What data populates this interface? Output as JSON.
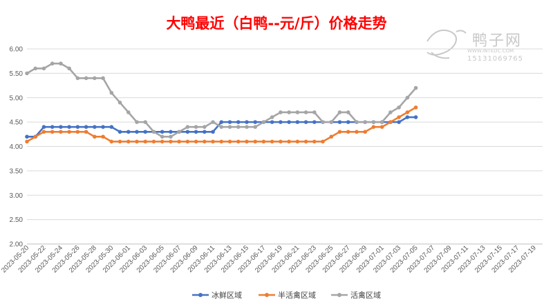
{
  "chart_data": {
    "type": "line",
    "title": "大鸭最近（白鸭--元/斤）价格走势",
    "xlabel": "",
    "ylabel": "",
    "ylim": [
      2.0,
      6.0
    ],
    "y_ticks": [
      "2.00",
      "2.50",
      "3.00",
      "3.50",
      "4.00",
      "4.50",
      "5.00",
      "5.50",
      "6.00"
    ],
    "grid": true,
    "legend_position": "bottom",
    "x_tick_labels": [
      "2023-05-20",
      "2023-05-22",
      "2023-05-24",
      "2023-05-26",
      "2023-05-28",
      "2023-05-30",
      "2023-06-01",
      "2023-06-03",
      "2023-06-05",
      "2023-06-07",
      "2023-06-09",
      "2023-06-11",
      "2023-06-13",
      "2023-06-15",
      "2023-06-17",
      "2023-06-19",
      "2023-06-21",
      "2023-06-23",
      "2023-06-25",
      "2023-06-27",
      "2023-06-29",
      "2023-07-01",
      "2023-07-03",
      "2023-07-05",
      "2023-07-07",
      "2023-07-09",
      "2023-07-11",
      "2023-07-13",
      "2023-07-15",
      "2023-07-17",
      "2023-07-19"
    ],
    "x_first_date": "2023-05-20",
    "x_last_date": "2023-07-20",
    "series": [
      {
        "name": "冰鲜区域",
        "color": "#4472C4",
        "points": [
          [
            "2023-05-20",
            4.2
          ],
          [
            "2023-05-21",
            4.2
          ],
          [
            "2023-05-22",
            4.4
          ],
          [
            "2023-05-23",
            4.4
          ],
          [
            "2023-05-24",
            4.4
          ],
          [
            "2023-05-25",
            4.4
          ],
          [
            "2023-05-26",
            4.4
          ],
          [
            "2023-05-27",
            4.4
          ],
          [
            "2023-05-28",
            4.4
          ],
          [
            "2023-05-29",
            4.4
          ],
          [
            "2023-05-30",
            4.4
          ],
          [
            "2023-05-31",
            4.3
          ],
          [
            "2023-06-01",
            4.3
          ],
          [
            "2023-06-02",
            4.3
          ],
          [
            "2023-06-03",
            4.3
          ],
          [
            "2023-06-04",
            4.3
          ],
          [
            "2023-06-05",
            4.3
          ],
          [
            "2023-06-06",
            4.3
          ],
          [
            "2023-06-07",
            4.3
          ],
          [
            "2023-06-08",
            4.3
          ],
          [
            "2023-06-09",
            4.3
          ],
          [
            "2023-06-10",
            4.3
          ],
          [
            "2023-06-11",
            4.3
          ],
          [
            "2023-06-12",
            4.5
          ],
          [
            "2023-06-13",
            4.5
          ],
          [
            "2023-06-14",
            4.5
          ],
          [
            "2023-06-15",
            4.5
          ],
          [
            "2023-06-16",
            4.5
          ],
          [
            "2023-06-17",
            4.5
          ],
          [
            "2023-06-18",
            4.5
          ],
          [
            "2023-06-19",
            4.5
          ],
          [
            "2023-06-20",
            4.5
          ],
          [
            "2023-06-21",
            4.5
          ],
          [
            "2023-06-22",
            4.5
          ],
          [
            "2023-06-23",
            4.5
          ],
          [
            "2023-06-24",
            4.5
          ],
          [
            "2023-06-25",
            4.5
          ],
          [
            "2023-06-26",
            4.5
          ],
          [
            "2023-06-27",
            4.5
          ],
          [
            "2023-06-28",
            4.5
          ],
          [
            "2023-06-29",
            4.5
          ],
          [
            "2023-06-30",
            4.5
          ],
          [
            "2023-07-01",
            4.5
          ],
          [
            "2023-07-02",
            4.5
          ],
          [
            "2023-07-03",
            4.5
          ],
          [
            "2023-07-04",
            4.6
          ],
          [
            "2023-07-05",
            4.6
          ]
        ]
      },
      {
        "name": "半活禽区域",
        "color": "#ED7D31",
        "points": [
          [
            "2023-05-20",
            4.1
          ],
          [
            "2023-05-21",
            4.2
          ],
          [
            "2023-05-22",
            4.3
          ],
          [
            "2023-05-23",
            4.3
          ],
          [
            "2023-05-24",
            4.3
          ],
          [
            "2023-05-25",
            4.3
          ],
          [
            "2023-05-26",
            4.3
          ],
          [
            "2023-05-27",
            4.3
          ],
          [
            "2023-05-28",
            4.2
          ],
          [
            "2023-05-29",
            4.2
          ],
          [
            "2023-05-30",
            4.1
          ],
          [
            "2023-05-31",
            4.1
          ],
          [
            "2023-06-01",
            4.1
          ],
          [
            "2023-06-02",
            4.1
          ],
          [
            "2023-06-03",
            4.1
          ],
          [
            "2023-06-04",
            4.1
          ],
          [
            "2023-06-05",
            4.1
          ],
          [
            "2023-06-06",
            4.1
          ],
          [
            "2023-06-07",
            4.1
          ],
          [
            "2023-06-08",
            4.1
          ],
          [
            "2023-06-09",
            4.1
          ],
          [
            "2023-06-10",
            4.1
          ],
          [
            "2023-06-11",
            4.1
          ],
          [
            "2023-06-12",
            4.1
          ],
          [
            "2023-06-13",
            4.1
          ],
          [
            "2023-06-14",
            4.1
          ],
          [
            "2023-06-15",
            4.1
          ],
          [
            "2023-06-16",
            4.1
          ],
          [
            "2023-06-17",
            4.1
          ],
          [
            "2023-06-18",
            4.1
          ],
          [
            "2023-06-19",
            4.1
          ],
          [
            "2023-06-20",
            4.1
          ],
          [
            "2023-06-21",
            4.1
          ],
          [
            "2023-06-22",
            4.1
          ],
          [
            "2023-06-23",
            4.1
          ],
          [
            "2023-06-24",
            4.1
          ],
          [
            "2023-06-25",
            4.2
          ],
          [
            "2023-06-26",
            4.3
          ],
          [
            "2023-06-27",
            4.3
          ],
          [
            "2023-06-28",
            4.3
          ],
          [
            "2023-06-29",
            4.3
          ],
          [
            "2023-06-30",
            4.4
          ],
          [
            "2023-07-01",
            4.4
          ],
          [
            "2023-07-02",
            4.5
          ],
          [
            "2023-07-03",
            4.6
          ],
          [
            "2023-07-04",
            4.7
          ],
          [
            "2023-07-05",
            4.8
          ]
        ]
      },
      {
        "name": "活禽区域",
        "color": "#A5A5A5",
        "points": [
          [
            "2023-05-20",
            5.5
          ],
          [
            "2023-05-21",
            5.6
          ],
          [
            "2023-05-22",
            5.6
          ],
          [
            "2023-05-23",
            5.7
          ],
          [
            "2023-05-24",
            5.7
          ],
          [
            "2023-05-25",
            5.6
          ],
          [
            "2023-05-26",
            5.4
          ],
          [
            "2023-05-27",
            5.4
          ],
          [
            "2023-05-28",
            5.4
          ],
          [
            "2023-05-29",
            5.4
          ],
          [
            "2023-05-30",
            5.1
          ],
          [
            "2023-05-31",
            4.9
          ],
          [
            "2023-06-01",
            4.7
          ],
          [
            "2023-06-02",
            4.5
          ],
          [
            "2023-06-03",
            4.5
          ],
          [
            "2023-06-04",
            4.3
          ],
          [
            "2023-06-05",
            4.2
          ],
          [
            "2023-06-06",
            4.2
          ],
          [
            "2023-06-07",
            4.3
          ],
          [
            "2023-06-08",
            4.4
          ],
          [
            "2023-06-09",
            4.4
          ],
          [
            "2023-06-10",
            4.4
          ],
          [
            "2023-06-11",
            4.5
          ],
          [
            "2023-06-12",
            4.4
          ],
          [
            "2023-06-13",
            4.4
          ],
          [
            "2023-06-14",
            4.4
          ],
          [
            "2023-06-15",
            4.4
          ],
          [
            "2023-06-16",
            4.4
          ],
          [
            "2023-06-17",
            4.5
          ],
          [
            "2023-06-18",
            4.6
          ],
          [
            "2023-06-19",
            4.7
          ],
          [
            "2023-06-20",
            4.7
          ],
          [
            "2023-06-21",
            4.7
          ],
          [
            "2023-06-22",
            4.7
          ],
          [
            "2023-06-23",
            4.7
          ],
          [
            "2023-06-24",
            4.5
          ],
          [
            "2023-06-25",
            4.5
          ],
          [
            "2023-06-26",
            4.7
          ],
          [
            "2023-06-27",
            4.7
          ],
          [
            "2023-06-28",
            4.5
          ],
          [
            "2023-06-29",
            4.5
          ],
          [
            "2023-06-30",
            4.5
          ],
          [
            "2023-07-01",
            4.5
          ],
          [
            "2023-07-02",
            4.7
          ],
          [
            "2023-07-03",
            4.8
          ],
          [
            "2023-07-04",
            5.0
          ],
          [
            "2023-07-05",
            5.2
          ]
        ]
      }
    ]
  },
  "watermark": {
    "brand_text": "鸭子网",
    "url_text": "WWW.INTEDC.COM",
    "phone_text": "15131069765"
  },
  "colors": {
    "title": "#FF0000",
    "grid": "#D9D9D9",
    "watermark": "#C8C8C8"
  }
}
